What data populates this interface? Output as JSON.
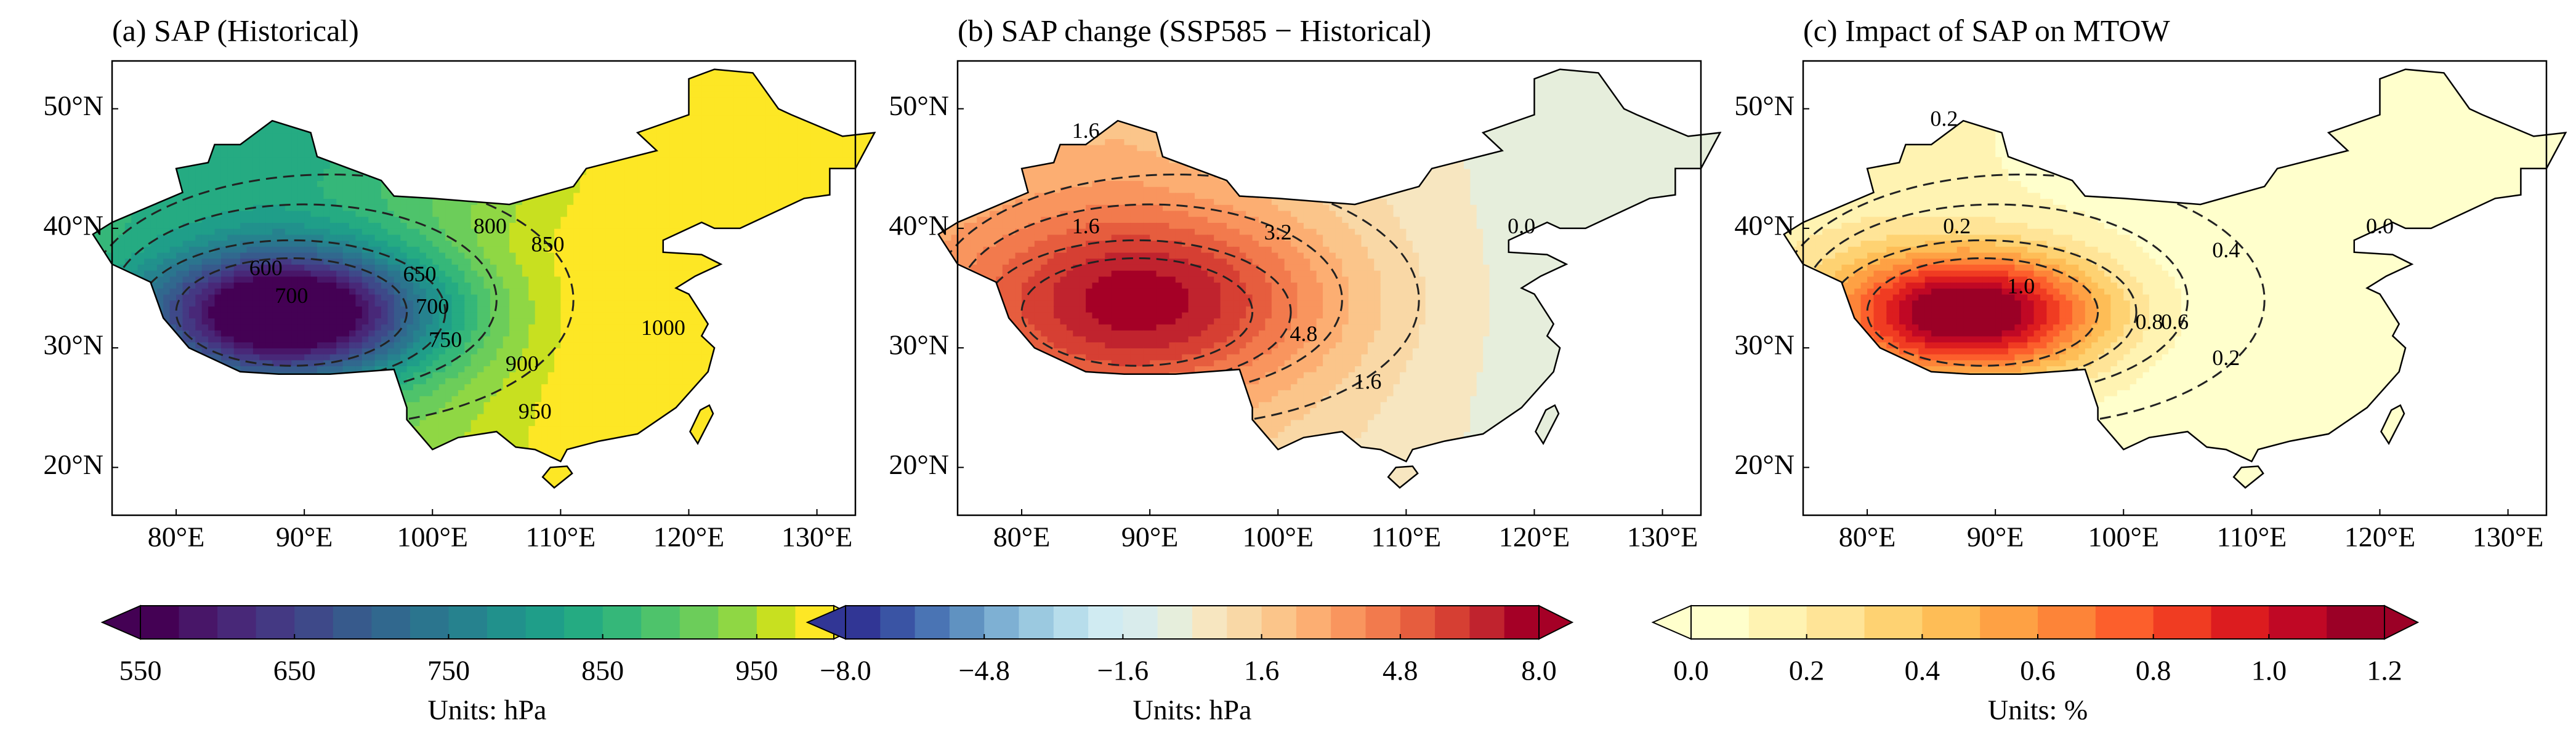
{
  "panels": [
    {
      "title": "(a)  SAP (Historical)",
      "xlim": [
        75,
        133
      ],
      "ylim": [
        16,
        54
      ],
      "xticks": [
        {
          "value": 80,
          "label": "80°E"
        },
        {
          "value": 90,
          "label": "90°E"
        },
        {
          "value": 100,
          "label": "100°E"
        },
        {
          "value": 110,
          "label": "110°E"
        },
        {
          "value": 120,
          "label": "120°E"
        },
        {
          "value": 130,
          "label": "130°E"
        }
      ],
      "yticks": [
        {
          "value": 20,
          "label": "20°N"
        },
        {
          "value": 30,
          "label": "30°N"
        },
        {
          "value": 40,
          "label": "40°N"
        },
        {
          "value": 50,
          "label": "50°N"
        }
      ],
      "contour_labels": [
        600,
        700,
        650,
        700,
        750,
        800,
        850,
        900,
        950,
        1000
      ],
      "colorbar": {
        "clim": [
          550,
          1000
        ],
        "ticks": [
          550,
          650,
          750,
          850,
          950
        ],
        "label": "Units: hPa",
        "colors": [
          "#440154",
          "#481668",
          "#482878",
          "#443983",
          "#3e4989",
          "#375a8c",
          "#31688e",
          "#2b758e",
          "#26828e",
          "#21918c",
          "#1f9e89",
          "#25ab82",
          "#35b779",
          "#4ec36b",
          "#6ccd5a",
          "#8fd744",
          "#c8e020",
          "#fde725"
        ]
      }
    },
    {
      "title": "(b) SAP change (SSP585 − Historical)",
      "xlim": [
        75,
        133
      ],
      "ylim": [
        16,
        54
      ],
      "xticks": [
        {
          "value": 80,
          "label": "80°E"
        },
        {
          "value": 90,
          "label": "90°E"
        },
        {
          "value": 100,
          "label": "100°E"
        },
        {
          "value": 110,
          "label": "110°E"
        },
        {
          "value": 120,
          "label": "120°E"
        },
        {
          "value": 130,
          "label": "130°E"
        }
      ],
      "yticks": [
        {
          "value": 20,
          "label": "20°N"
        },
        {
          "value": 30,
          "label": "30°N"
        },
        {
          "value": 40,
          "label": "40°N"
        },
        {
          "value": 50,
          "label": "50°N"
        }
      ],
      "contour_labels": [
        1.6,
        1.6,
        3.2,
        4.8,
        1.6,
        {
          "value": 0,
          "label": "0.0"
        }
      ],
      "colorbar": {
        "clim": [
          -8,
          8
        ],
        "ticks": [
          {
            "value": -8,
            "label": "−8.0"
          },
          {
            "value": -4.8,
            "label": "−4.8"
          },
          {
            "value": -1.6,
            "label": "−1.6"
          },
          1.6,
          4.8,
          {
            "value": 8,
            "label": "8.0"
          }
        ],
        "label": "Units: hPa",
        "colors": [
          "#313695",
          "#3a54a4",
          "#4a74b4",
          "#6092c1",
          "#7eb0d3",
          "#9bc9e0",
          "#b7ddeb",
          "#d0ebf2",
          "#d9ecec",
          "#e6eedc",
          "#f7e6c0",
          "#f9d8a6",
          "#fbc58a",
          "#fcae72",
          "#f9955e",
          "#f27a4d",
          "#e65d3e",
          "#d63f33",
          "#c0232e",
          "#a50026"
        ]
      }
    },
    {
      "title": "(c) Impact of SAP on MTOW",
      "xlim": [
        75,
        133
      ],
      "ylim": [
        16,
        54
      ],
      "xticks": [
        {
          "value": 80,
          "label": "80°E"
        },
        {
          "value": 90,
          "label": "90°E"
        },
        {
          "value": 100,
          "label": "100°E"
        },
        {
          "value": 110,
          "label": "110°E"
        },
        {
          "value": 120,
          "label": "120°E"
        },
        {
          "value": 130,
          "label": "130°E"
        }
      ],
      "yticks": [
        {
          "value": 20,
          "label": "20°N"
        },
        {
          "value": 30,
          "label": "30°N"
        },
        {
          "value": 40,
          "label": "40°N"
        },
        {
          "value": 50,
          "label": "50°N"
        }
      ],
      "contour_labels": [
        0.2,
        0.2,
        {
          "value": 1,
          "label": "1.0"
        },
        0.8,
        0.6,
        0.4,
        0.2,
        {
          "value": 0,
          "label": "0.0"
        }
      ],
      "colorbar": {
        "clim": [
          0,
          1.2
        ],
        "ticks": [
          {
            "value": 0,
            "label": "0.0"
          },
          0.2,
          0.4,
          0.6,
          0.8,
          {
            "value": 1,
            "label": "1.0"
          },
          1.2
        ],
        "label": "Units: %",
        "colors": [
          "#ffffcc",
          "#fff3b2",
          "#ffe497",
          "#fed272",
          "#febd56",
          "#fea144",
          "#fd8438",
          "#fc5f2c",
          "#f03c22",
          "#dc1c1f",
          "#c00825",
          "#9b0026"
        ]
      }
    }
  ]
}
